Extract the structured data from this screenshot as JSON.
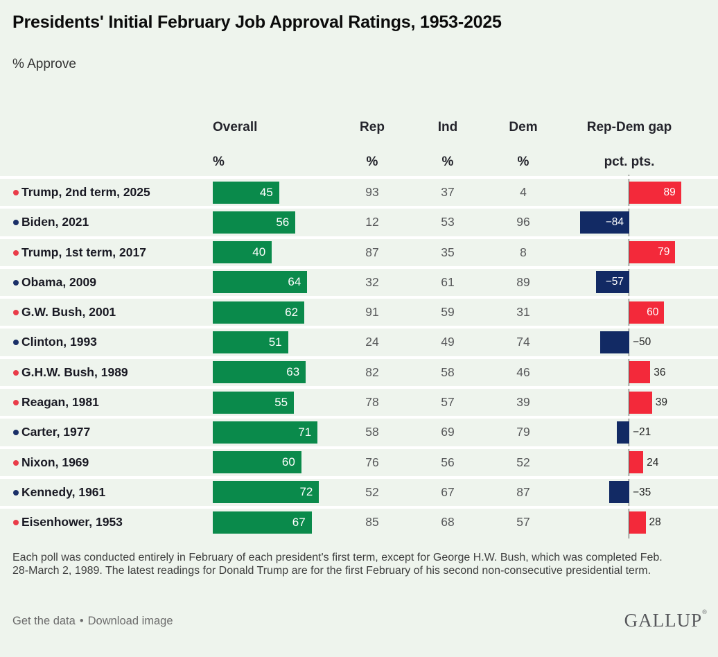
{
  "title": "Presidents' Initial February Job Approval Ratings, 1953-2025",
  "subtitle": "% Approve",
  "colors": {
    "bg": "#eef4ed",
    "green": "#0a8a4b",
    "red": "#f3293a",
    "navy": "#122a64",
    "dotR": "#e93c49",
    "dotD": "#1b3068"
  },
  "chart_data": {
    "type": "bar",
    "orientation": "horizontal",
    "title": "Presidents' Initial February Job Approval Ratings, 1953-2025",
    "subtitle": "% Approve",
    "columns": [
      {
        "key": "overall",
        "label": "Overall",
        "unit": "%"
      },
      {
        "key": "rep",
        "label": "Rep",
        "unit": "%"
      },
      {
        "key": "ind",
        "label": "Ind",
        "unit": "%"
      },
      {
        "key": "dem",
        "label": "Dem",
        "unit": "%"
      },
      {
        "key": "gap",
        "label": "Rep-Dem gap",
        "unit": "pct. pts."
      }
    ],
    "rows": [
      {
        "name": "Trump, 2nd term, 2025",
        "party": "R",
        "overall": 45,
        "rep": 93,
        "ind": 37,
        "dem": 4,
        "gap": 89,
        "gap_label": "89"
      },
      {
        "name": "Biden, 2021",
        "party": "D",
        "overall": 56,
        "rep": 12,
        "ind": 53,
        "dem": 96,
        "gap": -84,
        "gap_label": "−84"
      },
      {
        "name": "Trump, 1st term, 2017",
        "party": "R",
        "overall": 40,
        "rep": 87,
        "ind": 35,
        "dem": 8,
        "gap": 79,
        "gap_label": "79"
      },
      {
        "name": "Obama, 2009",
        "party": "D",
        "overall": 64,
        "rep": 32,
        "ind": 61,
        "dem": 89,
        "gap": -57,
        "gap_label": "−57"
      },
      {
        "name": "G.W. Bush, 2001",
        "party": "R",
        "overall": 62,
        "rep": 91,
        "ind": 59,
        "dem": 31,
        "gap": 60,
        "gap_label": "60"
      },
      {
        "name": "Clinton, 1993",
        "party": "D",
        "overall": 51,
        "rep": 24,
        "ind": 49,
        "dem": 74,
        "gap": -50,
        "gap_label": "−50"
      },
      {
        "name": "G.H.W. Bush, 1989",
        "party": "R",
        "overall": 63,
        "rep": 82,
        "ind": 58,
        "dem": 46,
        "gap": 36,
        "gap_label": "36"
      },
      {
        "name": "Reagan, 1981",
        "party": "R",
        "overall": 55,
        "rep": 78,
        "ind": 57,
        "dem": 39,
        "gap": 39,
        "gap_label": "39"
      },
      {
        "name": "Carter, 1977",
        "party": "D",
        "overall": 71,
        "rep": 58,
        "ind": 69,
        "dem": 79,
        "gap": -21,
        "gap_label": "−21"
      },
      {
        "name": "Nixon, 1969",
        "party": "R",
        "overall": 60,
        "rep": 76,
        "ind": 56,
        "dem": 52,
        "gap": 24,
        "gap_label": "24"
      },
      {
        "name": "Kennedy, 1961",
        "party": "D",
        "overall": 72,
        "rep": 52,
        "ind": 67,
        "dem": 87,
        "gap": -35,
        "gap_label": "−35"
      },
      {
        "name": "Eisenhower, 1953",
        "party": "R",
        "overall": 67,
        "rep": 85,
        "ind": 68,
        "dem": 57,
        "gap": 28,
        "gap_label": "28"
      }
    ],
    "layout": {
      "zero_line_for_gap": true,
      "legend": "none",
      "grid": "off"
    }
  },
  "footnote": "Each poll was conducted entirely in February of each president's first term, except for George H.W. Bush, which was completed Feb. 28-March 2, 1989. The latest readings for Donald Trump are for the first February of his second non-consecutive presidential term.",
  "footer": {
    "get_data": "Get the data",
    "bullet": "•",
    "download": "Download image",
    "brand": "GALLUP",
    "brand_mark": "®"
  }
}
